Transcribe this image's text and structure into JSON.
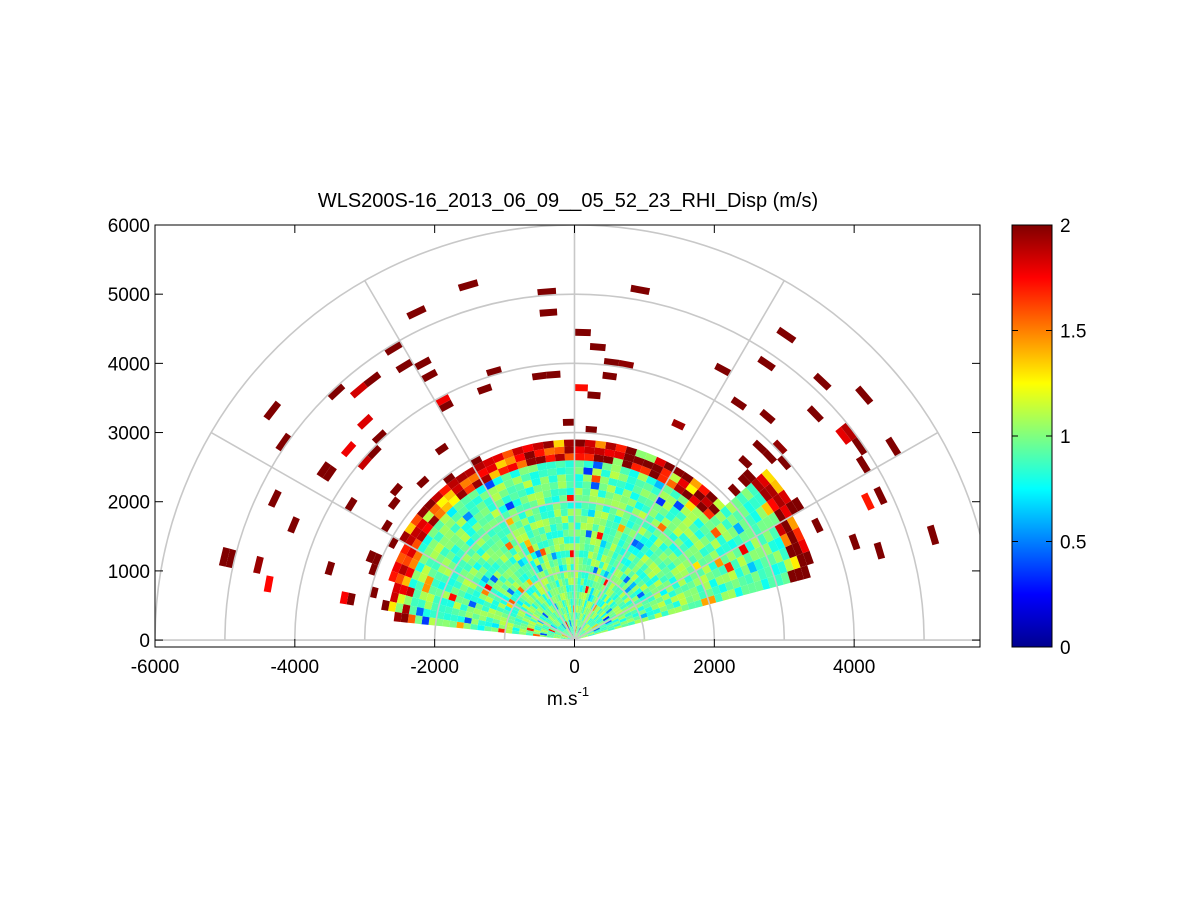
{
  "chart_data": {
    "type": "heatmap",
    "subtype": "polar-rhi-scan",
    "title": "WLS200S-16_2013_06_09__05_52_23_RHI_Disp (m/s)",
    "xlabel_base": "m.s",
    "xlabel_sup": "-1",
    "ylabel": "",
    "xlim": [
      -6000,
      5800
    ],
    "ylim": [
      -100,
      6000
    ],
    "xticks": [
      -6000,
      -4000,
      -2000,
      0,
      2000,
      4000
    ],
    "xtick_labels": [
      "-6000",
      "-4000",
      "-2000",
      "0",
      "2000",
      "4000"
    ],
    "yticks": [
      0,
      1000,
      2000,
      3000,
      4000,
      5000,
      6000
    ],
    "ytick_labels": [
      "0",
      "1000",
      "2000",
      "3000",
      "4000",
      "5000",
      "6000"
    ],
    "polar_grid": {
      "range_rings_m": [
        1000,
        2000,
        3000,
        4000,
        5000,
        6000
      ],
      "spokes_deg": [
        0,
        30,
        60,
        90,
        120,
        150,
        180
      ],
      "grid_on": true
    },
    "scan": {
      "azimuth_start_deg": 15,
      "azimuth_end_deg": 173,
      "beam_step_deg": 3,
      "gate_step_m": 100,
      "dense_region_max_range_m": 2900,
      "sparse_region_max_range_m": 5500
    },
    "colorbar": {
      "colormap": "jet",
      "clim": [
        0,
        2
      ],
      "ticks": [
        0,
        0.5,
        1,
        1.5,
        2
      ],
      "tick_labels": [
        "0",
        "0.5",
        "1",
        "1.5",
        "2"
      ],
      "placement": "right"
    },
    "value_distribution": {
      "dense_median": 0.95,
      "far_range_saturated": 2.0,
      "outer_edge_left_mean": 1.75,
      "outer_edge_right_mean": 1.9
    }
  }
}
